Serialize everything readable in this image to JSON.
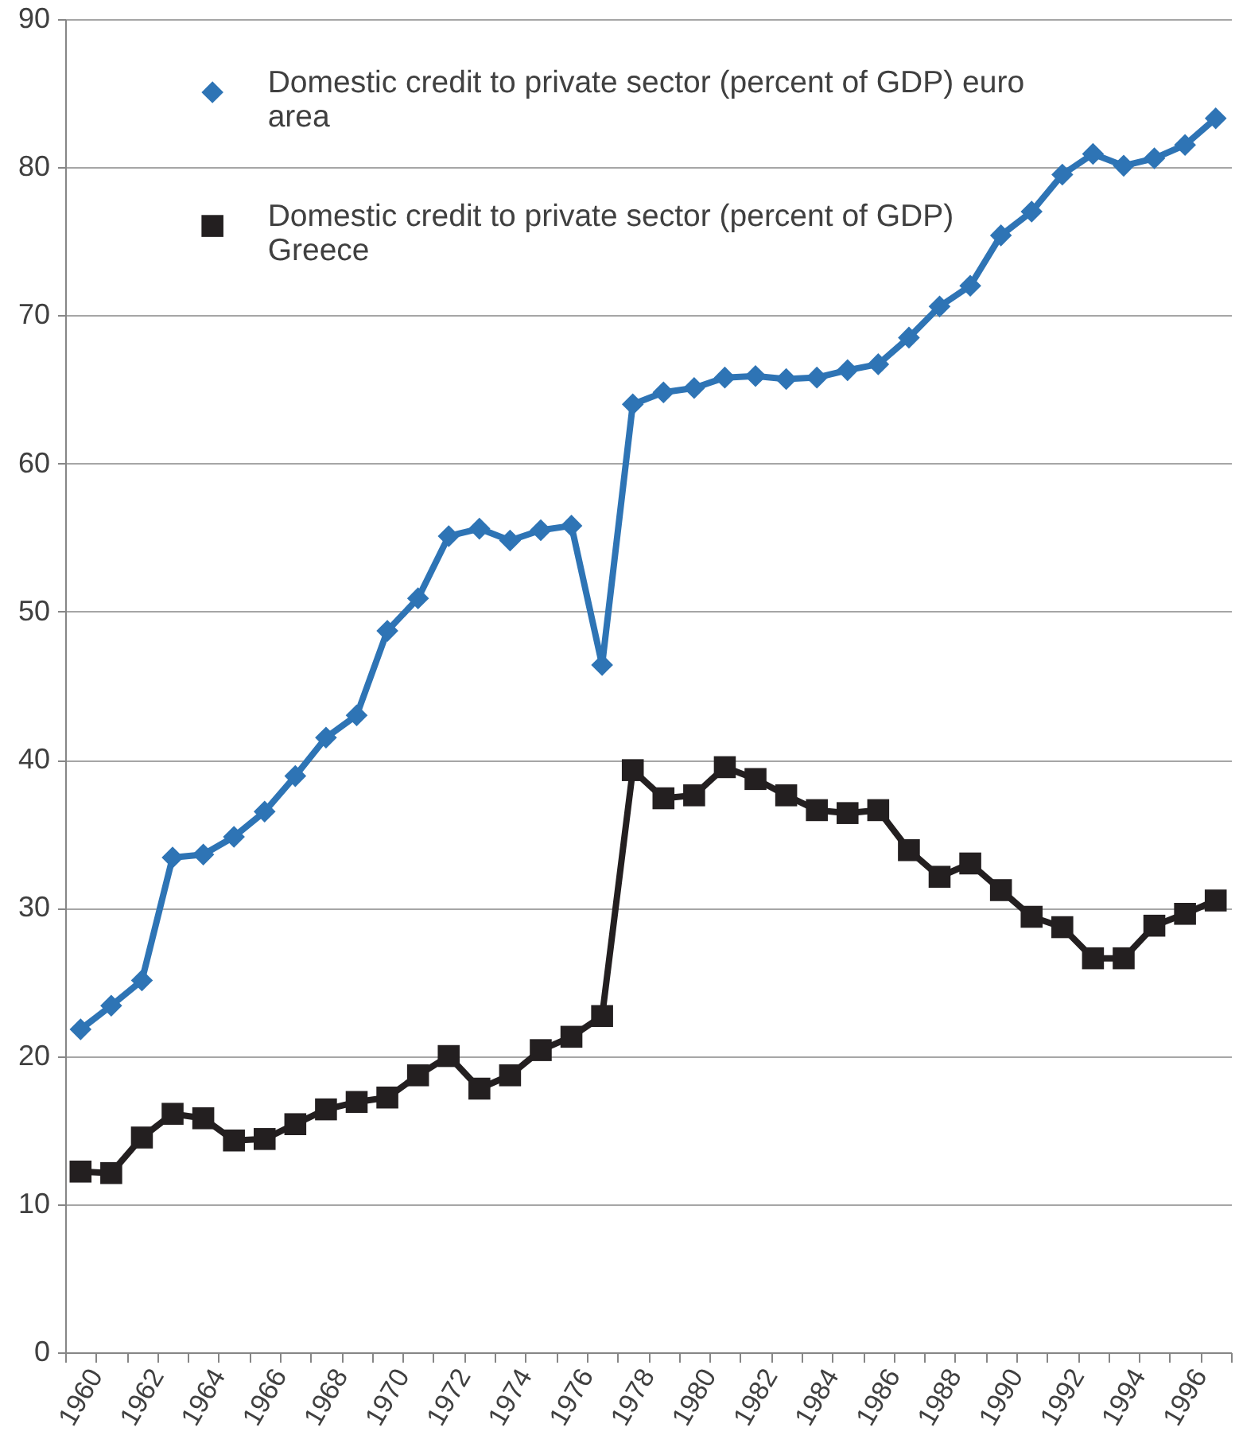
{
  "chart_data": {
    "type": "line",
    "categories": [
      "1960",
      null,
      "1962",
      null,
      "1964",
      null,
      "1966",
      null,
      "1968",
      null,
      "1970",
      null,
      "1972",
      null,
      "1974",
      null,
      "1976",
      null,
      "1978",
      null,
      "1980",
      null,
      "1982",
      null,
      "1984",
      null,
      "1986",
      null,
      "1988",
      null,
      "1990",
      null,
      "1992",
      null,
      "1994",
      null,
      "1996",
      null
    ],
    "ylim": [
      0,
      90
    ],
    "yticks": [
      0,
      10,
      20,
      30,
      40,
      50,
      60,
      70,
      80,
      90
    ],
    "grid": "y",
    "legend": "top left",
    "line_style": "solid",
    "series": [
      {
        "name": "Domestic credit to private sector (percent of GDP) euro area",
        "color": "#2e74b5",
        "marker": "diamond",
        "values": [
          21.8,
          23.4,
          25.1,
          33.4,
          33.6,
          34.8,
          36.5,
          38.9,
          41.5,
          43.0,
          48.7,
          50.9,
          55.1,
          55.6,
          54.8,
          55.5,
          55.8,
          46.4,
          64.0,
          64.8,
          65.1,
          65.8,
          65.9,
          65.7,
          65.8,
          66.3,
          66.7,
          68.5,
          70.6,
          72.0,
          75.4,
          77.0,
          79.5,
          80.9,
          80.1,
          80.6,
          81.5,
          83.3
        ]
      },
      {
        "name": "Domestic credit to private sector (percent of GDP) Greece",
        "color": "#231f20",
        "marker": "square",
        "values": [
          12.2,
          12.1,
          14.5,
          16.1,
          15.8,
          14.3,
          14.4,
          15.4,
          16.4,
          16.9,
          17.2,
          18.7,
          20.0,
          17.8,
          18.7,
          20.4,
          21.3,
          22.7,
          39.3,
          37.4,
          37.6,
          39.5,
          38.7,
          37.6,
          36.6,
          36.4,
          36.6,
          33.9,
          32.1,
          33.0,
          31.2,
          29.4,
          28.7,
          26.6,
          26.6,
          28.8,
          29.6,
          30.5
        ]
      }
    ]
  }
}
